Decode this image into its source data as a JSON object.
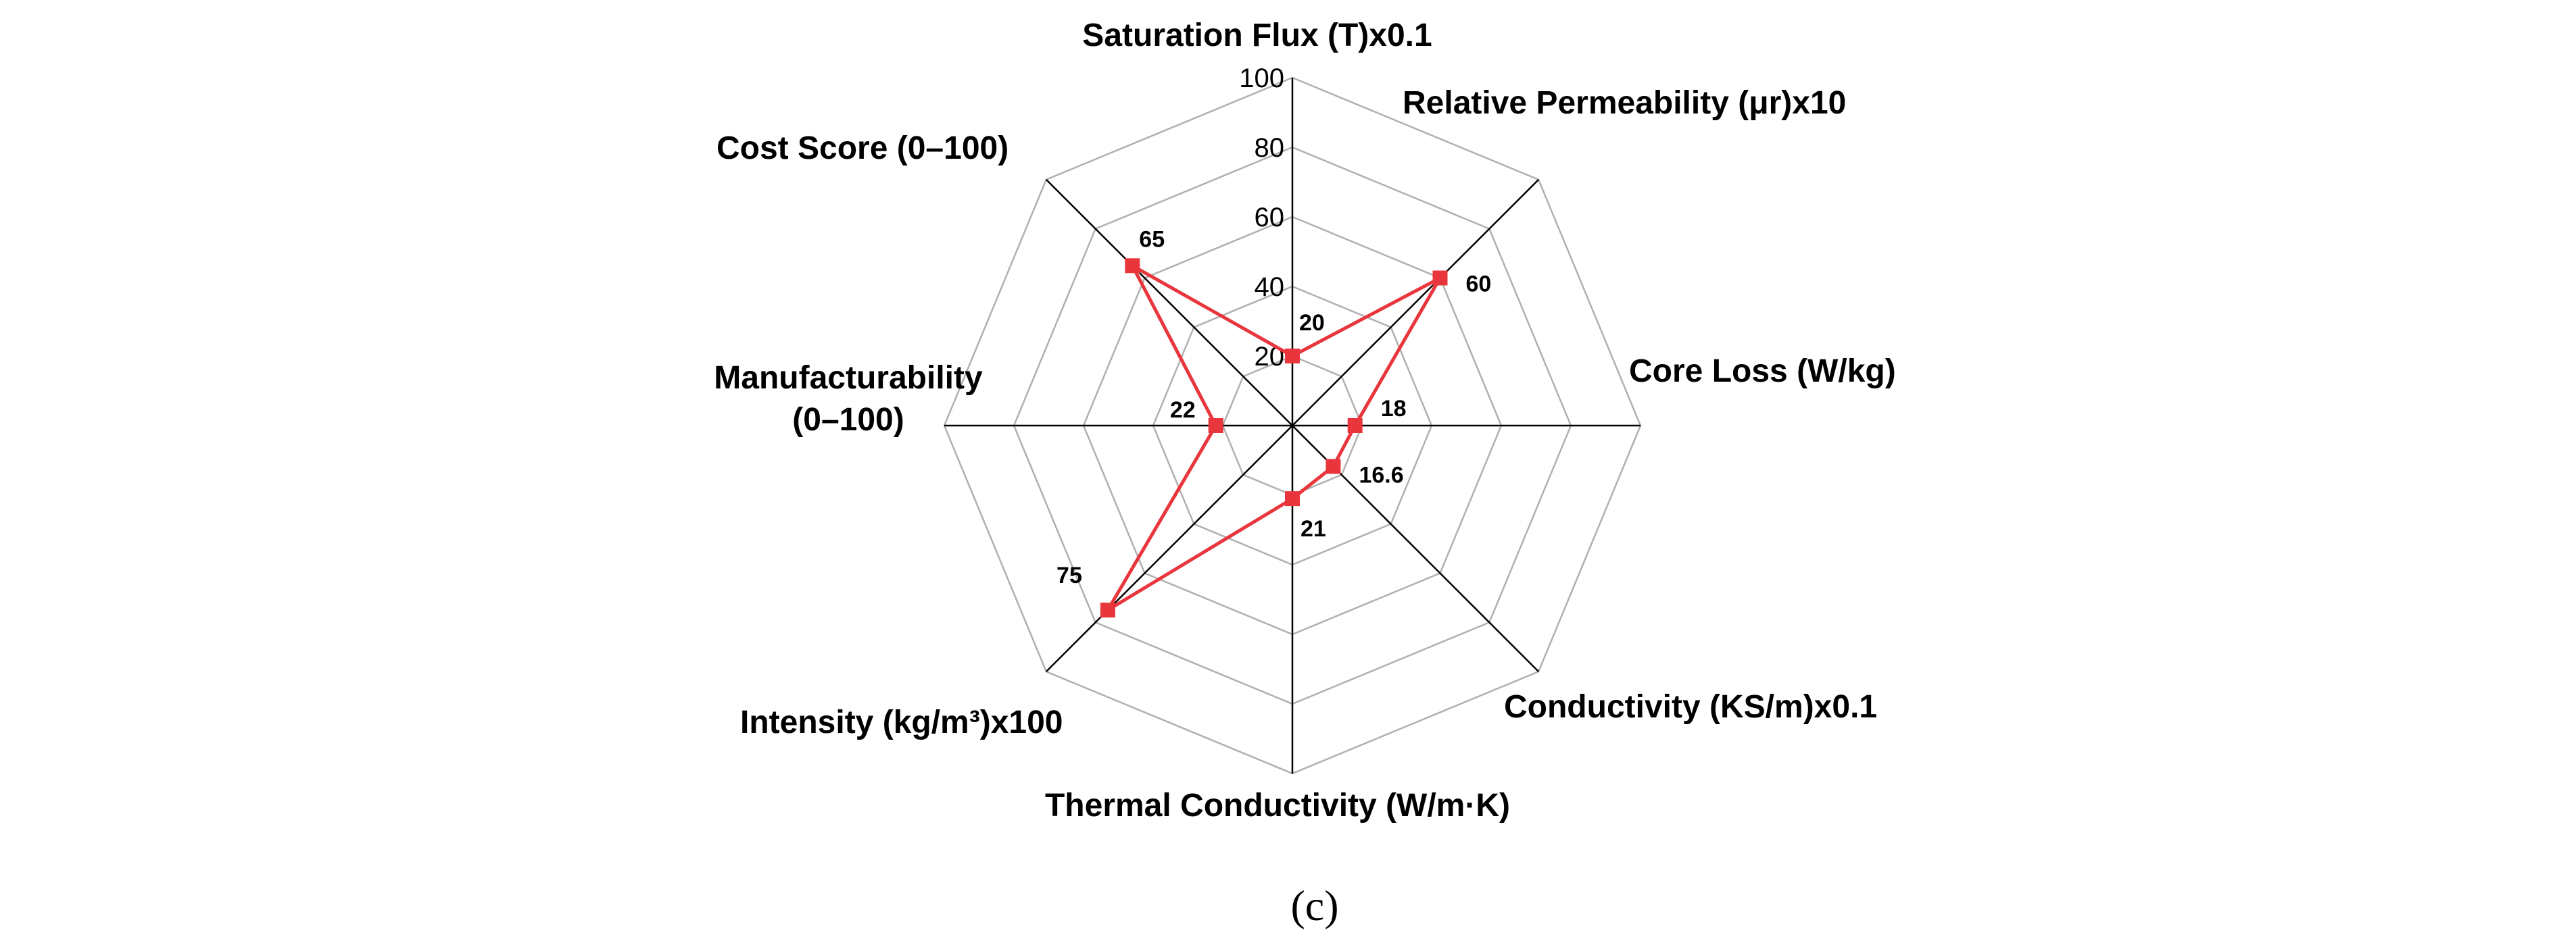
{
  "chart_data": {
    "type": "radar",
    "axes": [
      "Saturation Flux (T)x0.1",
      "Relative Permeability (μr)x10",
      "Core Loss (W/kg)",
      "Conductivity (KS/m)x0.1",
      "Thermal Conductivity (W/m·K)",
      "Intensity (kg/m³)x100",
      "Manufacturability (0–100)",
      "Cost Score (0–100)"
    ],
    "ticks": [
      "20",
      "40",
      "60",
      "80",
      "100"
    ],
    "rlim": [
      0,
      100
    ],
    "series": [
      {
        "values": [
          20,
          60,
          18,
          16.6,
          21,
          75,
          22,
          65
        ],
        "labels": [
          "20",
          "60",
          "18",
          "16.6",
          "21",
          "75",
          "22",
          "65"
        ],
        "color": "#e8363c"
      }
    ],
    "grid": true,
    "legend": "none",
    "caption": "(c)"
  },
  "colors": {
    "series": "#e8363c",
    "grid": "#b0b0b0",
    "spoke": "#000000",
    "text": "#000000"
  }
}
